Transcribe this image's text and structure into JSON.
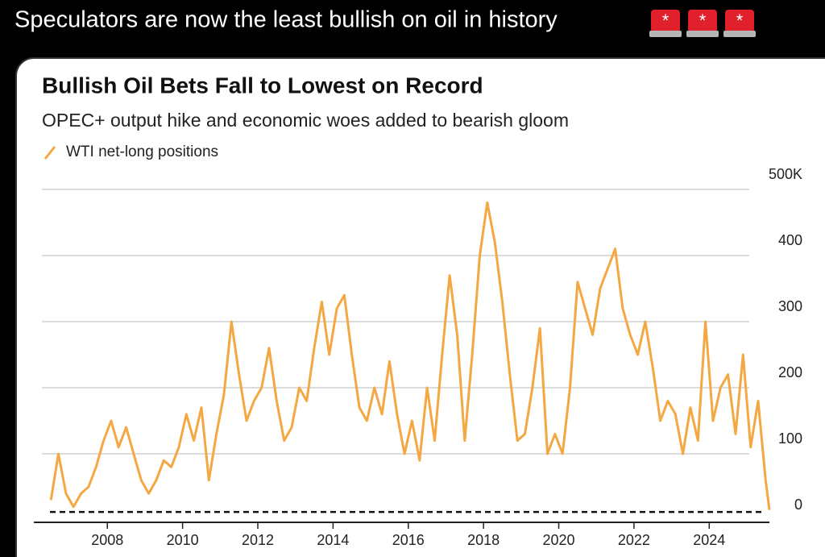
{
  "post": {
    "text": "Speculators are now the least bullish on oil in history"
  },
  "chart_data": {
    "type": "line",
    "title": "Bullish Oil Bets Fall to Lowest on Record",
    "subtitle": "OPEC+ output hike and economic woes added to bearish gloom",
    "x": [
      2006.5,
      2006.7,
      2006.9,
      2007.1,
      2007.3,
      2007.5,
      2007.7,
      2007.9,
      2008.1,
      2008.3,
      2008.5,
      2008.7,
      2008.9,
      2009.1,
      2009.3,
      2009.5,
      2009.7,
      2009.9,
      2010.1,
      2010.3,
      2010.5,
      2010.7,
      2010.9,
      2011.1,
      2011.3,
      2011.5,
      2011.7,
      2011.9,
      2012.1,
      2012.3,
      2012.5,
      2012.7,
      2012.9,
      2013.1,
      2013.3,
      2013.5,
      2013.7,
      2013.9,
      2014.1,
      2014.3,
      2014.5,
      2014.7,
      2014.9,
      2015.1,
      2015.3,
      2015.5,
      2015.7,
      2015.9,
      2016.1,
      2016.3,
      2016.5,
      2016.7,
      2016.9,
      2017.1,
      2017.3,
      2017.5,
      2017.7,
      2017.9,
      2018.1,
      2018.3,
      2018.5,
      2018.7,
      2018.9,
      2019.1,
      2019.3,
      2019.5,
      2019.7,
      2019.9,
      2020.1,
      2020.3,
      2020.5,
      2020.7,
      2020.9,
      2021.1,
      2021.3,
      2021.5,
      2021.7,
      2021.9,
      2022.1,
      2022.3,
      2022.5,
      2022.7,
      2022.9,
      2023.1,
      2023.3,
      2023.5,
      2023.7,
      2023.9,
      2024.1,
      2024.3,
      2024.5,
      2024.7,
      2024.9,
      2025.1,
      2025.3,
      2025.5,
      2025.6
    ],
    "series": [
      {
        "name": "WTI net-long positions",
        "color": "#f5a742",
        "values": [
          30,
          100,
          40,
          20,
          40,
          50,
          80,
          120,
          150,
          110,
          140,
          100,
          60,
          40,
          60,
          90,
          80,
          110,
          160,
          120,
          170,
          60,
          130,
          190,
          300,
          220,
          150,
          180,
          200,
          260,
          180,
          120,
          140,
          200,
          180,
          260,
          330,
          250,
          320,
          340,
          250,
          170,
          150,
          200,
          160,
          240,
          160,
          100,
          150,
          90,
          200,
          120,
          250,
          370,
          280,
          120,
          250,
          400,
          480,
          420,
          330,
          220,
          120,
          130,
          200,
          290,
          100,
          130,
          100,
          200,
          360,
          320,
          280,
          350,
          380,
          410,
          320,
          280,
          250,
          300,
          230,
          150,
          180,
          160,
          100,
          170,
          120,
          300,
          150,
          200,
          220,
          130,
          250,
          110,
          180,
          60,
          15
        ]
      }
    ],
    "reference_line": 12,
    "xlim": [
      2006.26,
      2025.6
    ],
    "xticks": [
      2008,
      2010,
      2012,
      2014,
      2016,
      2018,
      2020,
      2022,
      2024
    ],
    "ylim": [
      0,
      500
    ],
    "yticks": [
      0,
      100,
      200,
      300,
      400,
      {
        "value": 500,
        "label": "500K"
      }
    ],
    "grid": true
  }
}
